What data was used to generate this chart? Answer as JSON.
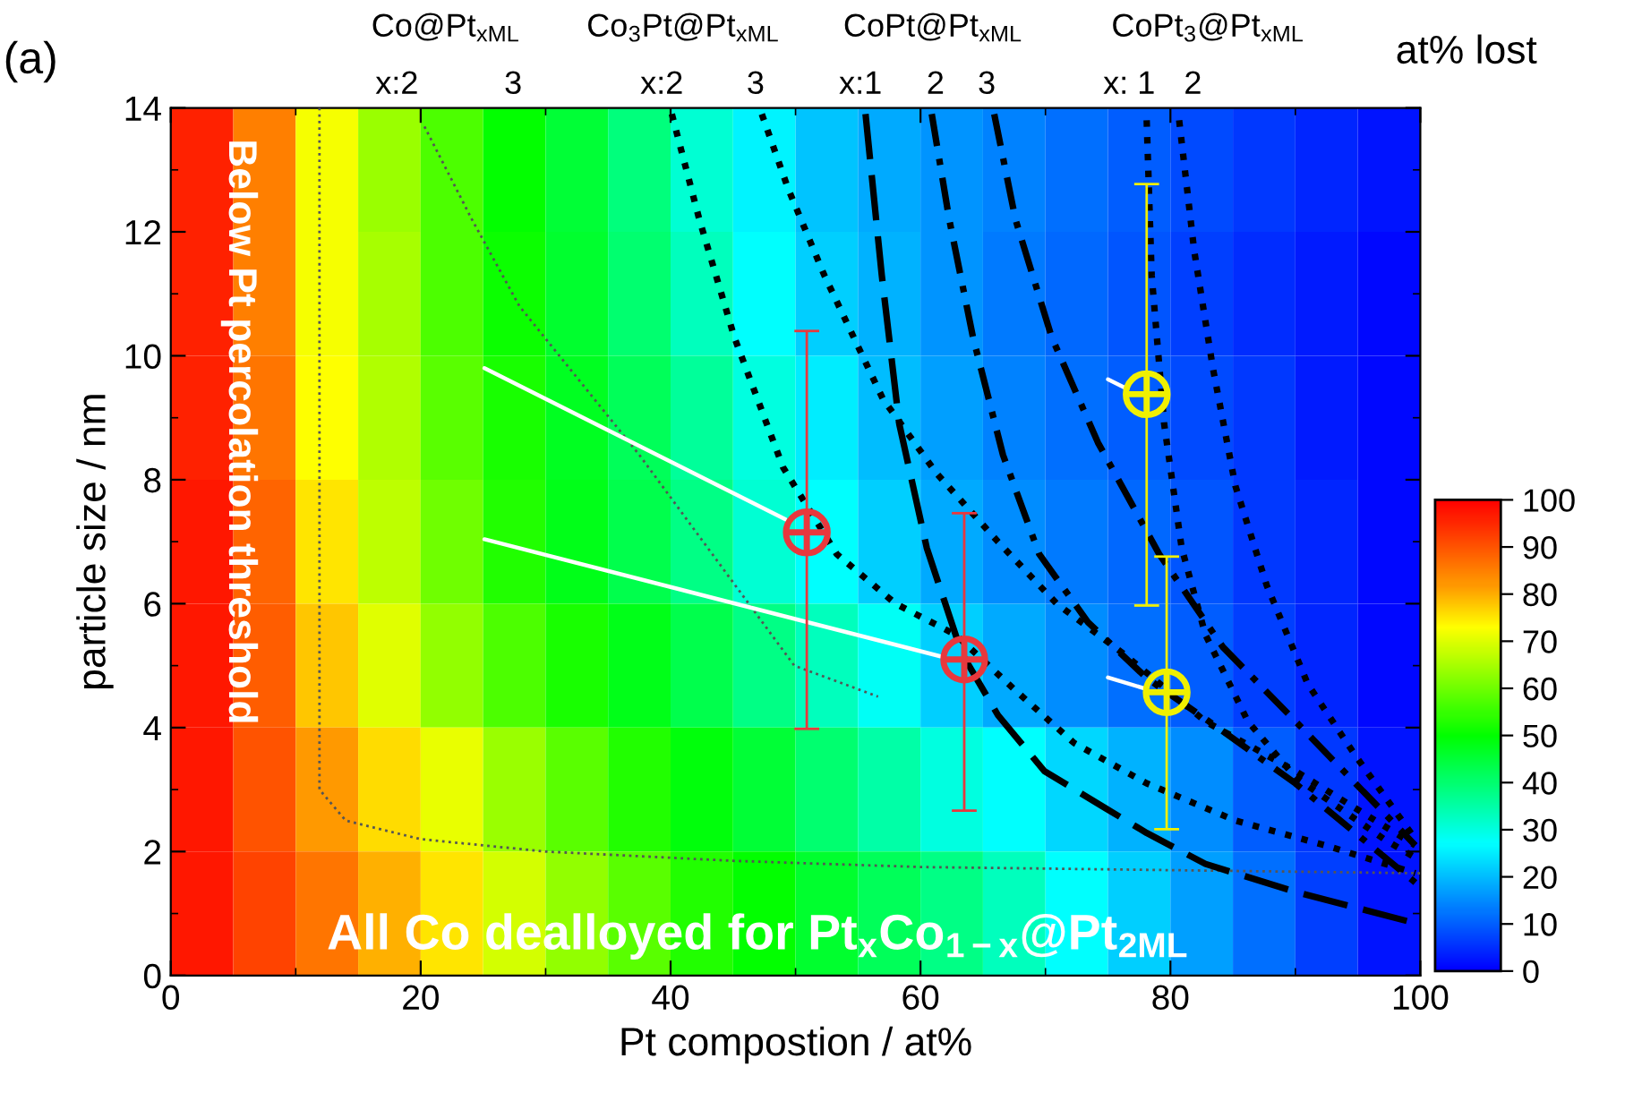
{
  "chart_data": {
    "type": "heatmap",
    "xlabel": "Pt compostion / at%",
    "ylabel": "particle size / nm",
    "clabel": "at% lost",
    "xlim": [
      0,
      100
    ],
    "ylim": [
      0,
      14
    ],
    "xticks": [
      0,
      20,
      40,
      60,
      80,
      100
    ],
    "yticks": [
      0,
      2,
      4,
      6,
      8,
      10,
      12,
      14
    ],
    "clim": [
      0,
      100
    ],
    "cticks": [
      0,
      10,
      20,
      30,
      40,
      50,
      60,
      70,
      80,
      90,
      100
    ],
    "cells": [
      [
        96,
        85,
        72,
        64,
        57,
        50,
        45,
        39,
        31,
        26,
        21,
        18,
        16,
        14,
        12,
        10,
        8,
        6,
        4,
        2
      ],
      [
        96,
        85,
        72,
        65,
        57,
        51,
        46,
        40,
        33,
        27,
        22,
        19,
        16,
        13,
        11,
        9,
        7,
        5,
        3,
        1
      ],
      [
        96,
        86,
        73,
        66,
        58,
        52,
        47,
        42,
        36,
        30,
        25,
        20,
        17,
        14,
        12,
        10,
        8,
        6,
        3,
        1
      ],
      [
        97,
        88,
        75,
        67,
        60,
        53,
        48,
        43,
        38,
        31,
        27,
        22,
        18,
        15,
        13,
        11,
        9,
        6,
        4,
        1
      ],
      [
        97,
        89,
        78,
        70,
        63,
        57,
        52,
        48,
        43,
        38,
        33,
        28,
        22,
        18,
        15,
        12,
        10,
        7,
        4,
        1
      ],
      [
        97,
        90,
        82,
        76,
        71,
        64,
        58,
        53,
        49,
        45,
        40,
        35,
        30,
        27,
        23,
        19,
        15,
        10,
        6,
        2
      ],
      [
        97,
        92,
        86,
        80,
        75,
        69,
        63,
        58,
        53,
        50,
        46,
        42,
        38,
        33,
        27,
        22,
        17,
        12,
        7,
        2
      ]
    ],
    "series": [
      {
        "type": "line",
        "color": "#555555",
        "line_style": "dotted",
        "x": [
          11.9,
          11.9,
          11.9,
          14,
          20,
          30,
          45,
          60,
          80,
          100
        ],
        "values": [
          14,
          6,
          3,
          2.5,
          2.2,
          2.0,
          1.85,
          1.75,
          1.7,
          1.65
        ]
      },
      {
        "type": "line",
        "color": "#555555",
        "line_style": "dotted",
        "x": [
          20.3,
          24.1,
          27.9,
          37.5,
          49.9,
          56.6
        ],
        "values": [
          13.7,
          12.2,
          10.8,
          8.4,
          5.0,
          4.5
        ]
      },
      {
        "type": "line",
        "color": "#000000",
        "line_style": "dotted",
        "x": [
          40.1,
          42.3,
          45.1,
          49.0,
          53.3,
          58.0,
          62.8,
          67.6,
          72.3,
          78.1,
          85.2,
          92.4,
          99.6
        ],
        "values": [
          13.9,
          12.2,
          10.3,
          8.2,
          6.8,
          6.0,
          5.5,
          4.6,
          3.75,
          3.1,
          2.5,
          2.1,
          1.65
        ]
      },
      {
        "type": "line",
        "color": "#000000",
        "line_style": "dotted",
        "x": [
          47.3,
          49.4,
          52.3,
          57.0,
          61.3,
          66.2,
          70.9,
          76.2,
          82.8,
          90.0,
          99.6
        ],
        "values": [
          13.9,
          12.7,
          11.3,
          9.3,
          8.1,
          7.0,
          6.0,
          5.2,
          4.1,
          3.3,
          2.1
        ]
      },
      {
        "type": "line",
        "color": "#000000",
        "line_style": "dashed",
        "x": [
          55.6,
          56.9,
          58.3,
          60.5,
          63.3,
          66.2,
          69.9,
          74.8,
          78.1,
          82.8,
          90.0,
          99.1
        ],
        "values": [
          13.9,
          11.3,
          8.9,
          6.9,
          5.2,
          4.2,
          3.3,
          2.7,
          2.3,
          1.8,
          1.35,
          0.87
        ]
      },
      {
        "type": "line",
        "color": "#000000",
        "line_style": "dashdot",
        "x": [
          60.9,
          62.3,
          64.2,
          66.6,
          69.5,
          73.4,
          78.1,
          83.8,
          90.0,
          99.6
        ],
        "values": [
          13.9,
          12.2,
          10.3,
          8.4,
          6.8,
          5.7,
          4.8,
          4.0,
          3.1,
          1.5
        ]
      },
      {
        "type": "line",
        "color": "#000000",
        "line_style": "dashdot",
        "x": [
          65.9,
          67.6,
          70.5,
          74.2,
          79.1,
          84.2,
          90.5,
          99.6
        ],
        "values": [
          13.9,
          12.2,
          10.3,
          8.6,
          6.8,
          5.3,
          4.0,
          2.1
        ]
      },
      {
        "type": "line",
        "color": "#000000",
        "line_style": "dotted",
        "x": [
          78.1,
          78.5,
          79.5,
          80.9,
          82.8,
          86.2,
          90.0,
          97.1,
          99.6
        ],
        "values": [
          13.8,
          11.3,
          8.9,
          6.9,
          5.5,
          4.1,
          3.2,
          2.2,
          1.9
        ]
      },
      {
        "type": "line",
        "color": "#000000",
        "line_style": "dotted",
        "x": [
          80.7,
          81.9,
          83.4,
          85.2,
          87.7,
          91.0,
          94.8,
          99.6
        ],
        "values": [
          13.8,
          11.7,
          9.8,
          7.9,
          6.3,
          4.7,
          3.55,
          2.2
        ]
      },
      {
        "type": "line",
        "color": "#ffffff",
        "line_style": "solid",
        "x": [
          25.1,
          49.2
        ],
        "values": [
          9.8,
          7.36
        ]
      },
      {
        "type": "line",
        "color": "#ffffff",
        "line_style": "solid",
        "x": [
          25.1,
          61.6
        ],
        "values": [
          7.04,
          5.15
        ]
      },
      {
        "type": "line",
        "color": "#ffffff",
        "line_style": "solid",
        "x": [
          75.0,
          76.4
        ],
        "values": [
          9.62,
          9.48
        ]
      },
      {
        "type": "line",
        "color": "#ffffff",
        "line_style": "solid",
        "x": [
          75.0,
          78.1
        ],
        "values": [
          4.81,
          4.62
        ]
      },
      {
        "type": "scatter",
        "color": "#e8383d",
        "marker": "circle",
        "x": [
          50.9,
          63.5
        ],
        "values": [
          7.15,
          5.1
        ],
        "errors": [
          [
            3.98,
            10.4
          ],
          [
            2.66,
            7.46
          ]
        ]
      },
      {
        "type": "scatter",
        "color": "#f0f000",
        "marker": "circle",
        "x": [
          78.1,
          79.7
        ],
        "values": [
          9.38,
          4.57
        ],
        "errors": [
          [
            5.97,
            12.77
          ],
          [
            2.36,
            6.76
          ]
        ]
      }
    ],
    "annotations": [
      "(a)",
      "Below Pt percolation threshold",
      "All Co dealloyed for Pt$_{x}$Co$_{1−x}$@Pt$_{2ML}$",
      "Co@Pt$_{xML}$",
      "Co$_{3}$Pt@Pt$_{xML}$",
      "CoPt@Pt$_{xML}$",
      "CoPt$_{3}$@Pt$_{xML}$",
      "x:2",
      "3",
      "x:2",
      "3",
      "x:1",
      "2",
      "3",
      "x: 1",
      "2"
    ]
  }
}
